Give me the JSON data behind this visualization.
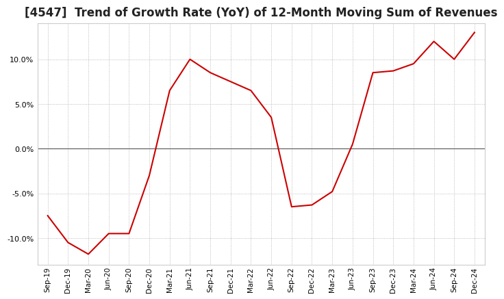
{
  "title": "[4547]  Trend of Growth Rate (YoY) of 12-Month Moving Sum of Revenues",
  "title_fontsize": 12,
  "line_color": "#cc0000",
  "background_color": "#ffffff",
  "plot_bg_color": "#ffffff",
  "ylim": [
    -0.13,
    0.14
  ],
  "yticks": [
    -0.1,
    -0.05,
    0.0,
    0.05,
    0.1
  ],
  "xlabels": [
    "Sep-19",
    "Dec-19",
    "Mar-20",
    "Jun-20",
    "Sep-20",
    "Dec-20",
    "Mar-21",
    "Jun-21",
    "Sep-21",
    "Dec-21",
    "Mar-22",
    "Jun-22",
    "Sep-22",
    "Dec-22",
    "Mar-23",
    "Jun-23",
    "Sep-23",
    "Dec-23",
    "Mar-24",
    "Jun-24",
    "Sep-24",
    "Dec-24"
  ],
  "ydata": [
    -0.075,
    -0.105,
    -0.118,
    -0.095,
    -0.095,
    -0.03,
    0.065,
    0.1,
    0.085,
    0.075,
    0.065,
    0.035,
    -0.065,
    -0.063,
    -0.048,
    0.005,
    0.085,
    0.087,
    0.095,
    0.12,
    0.1,
    0.13
  ]
}
